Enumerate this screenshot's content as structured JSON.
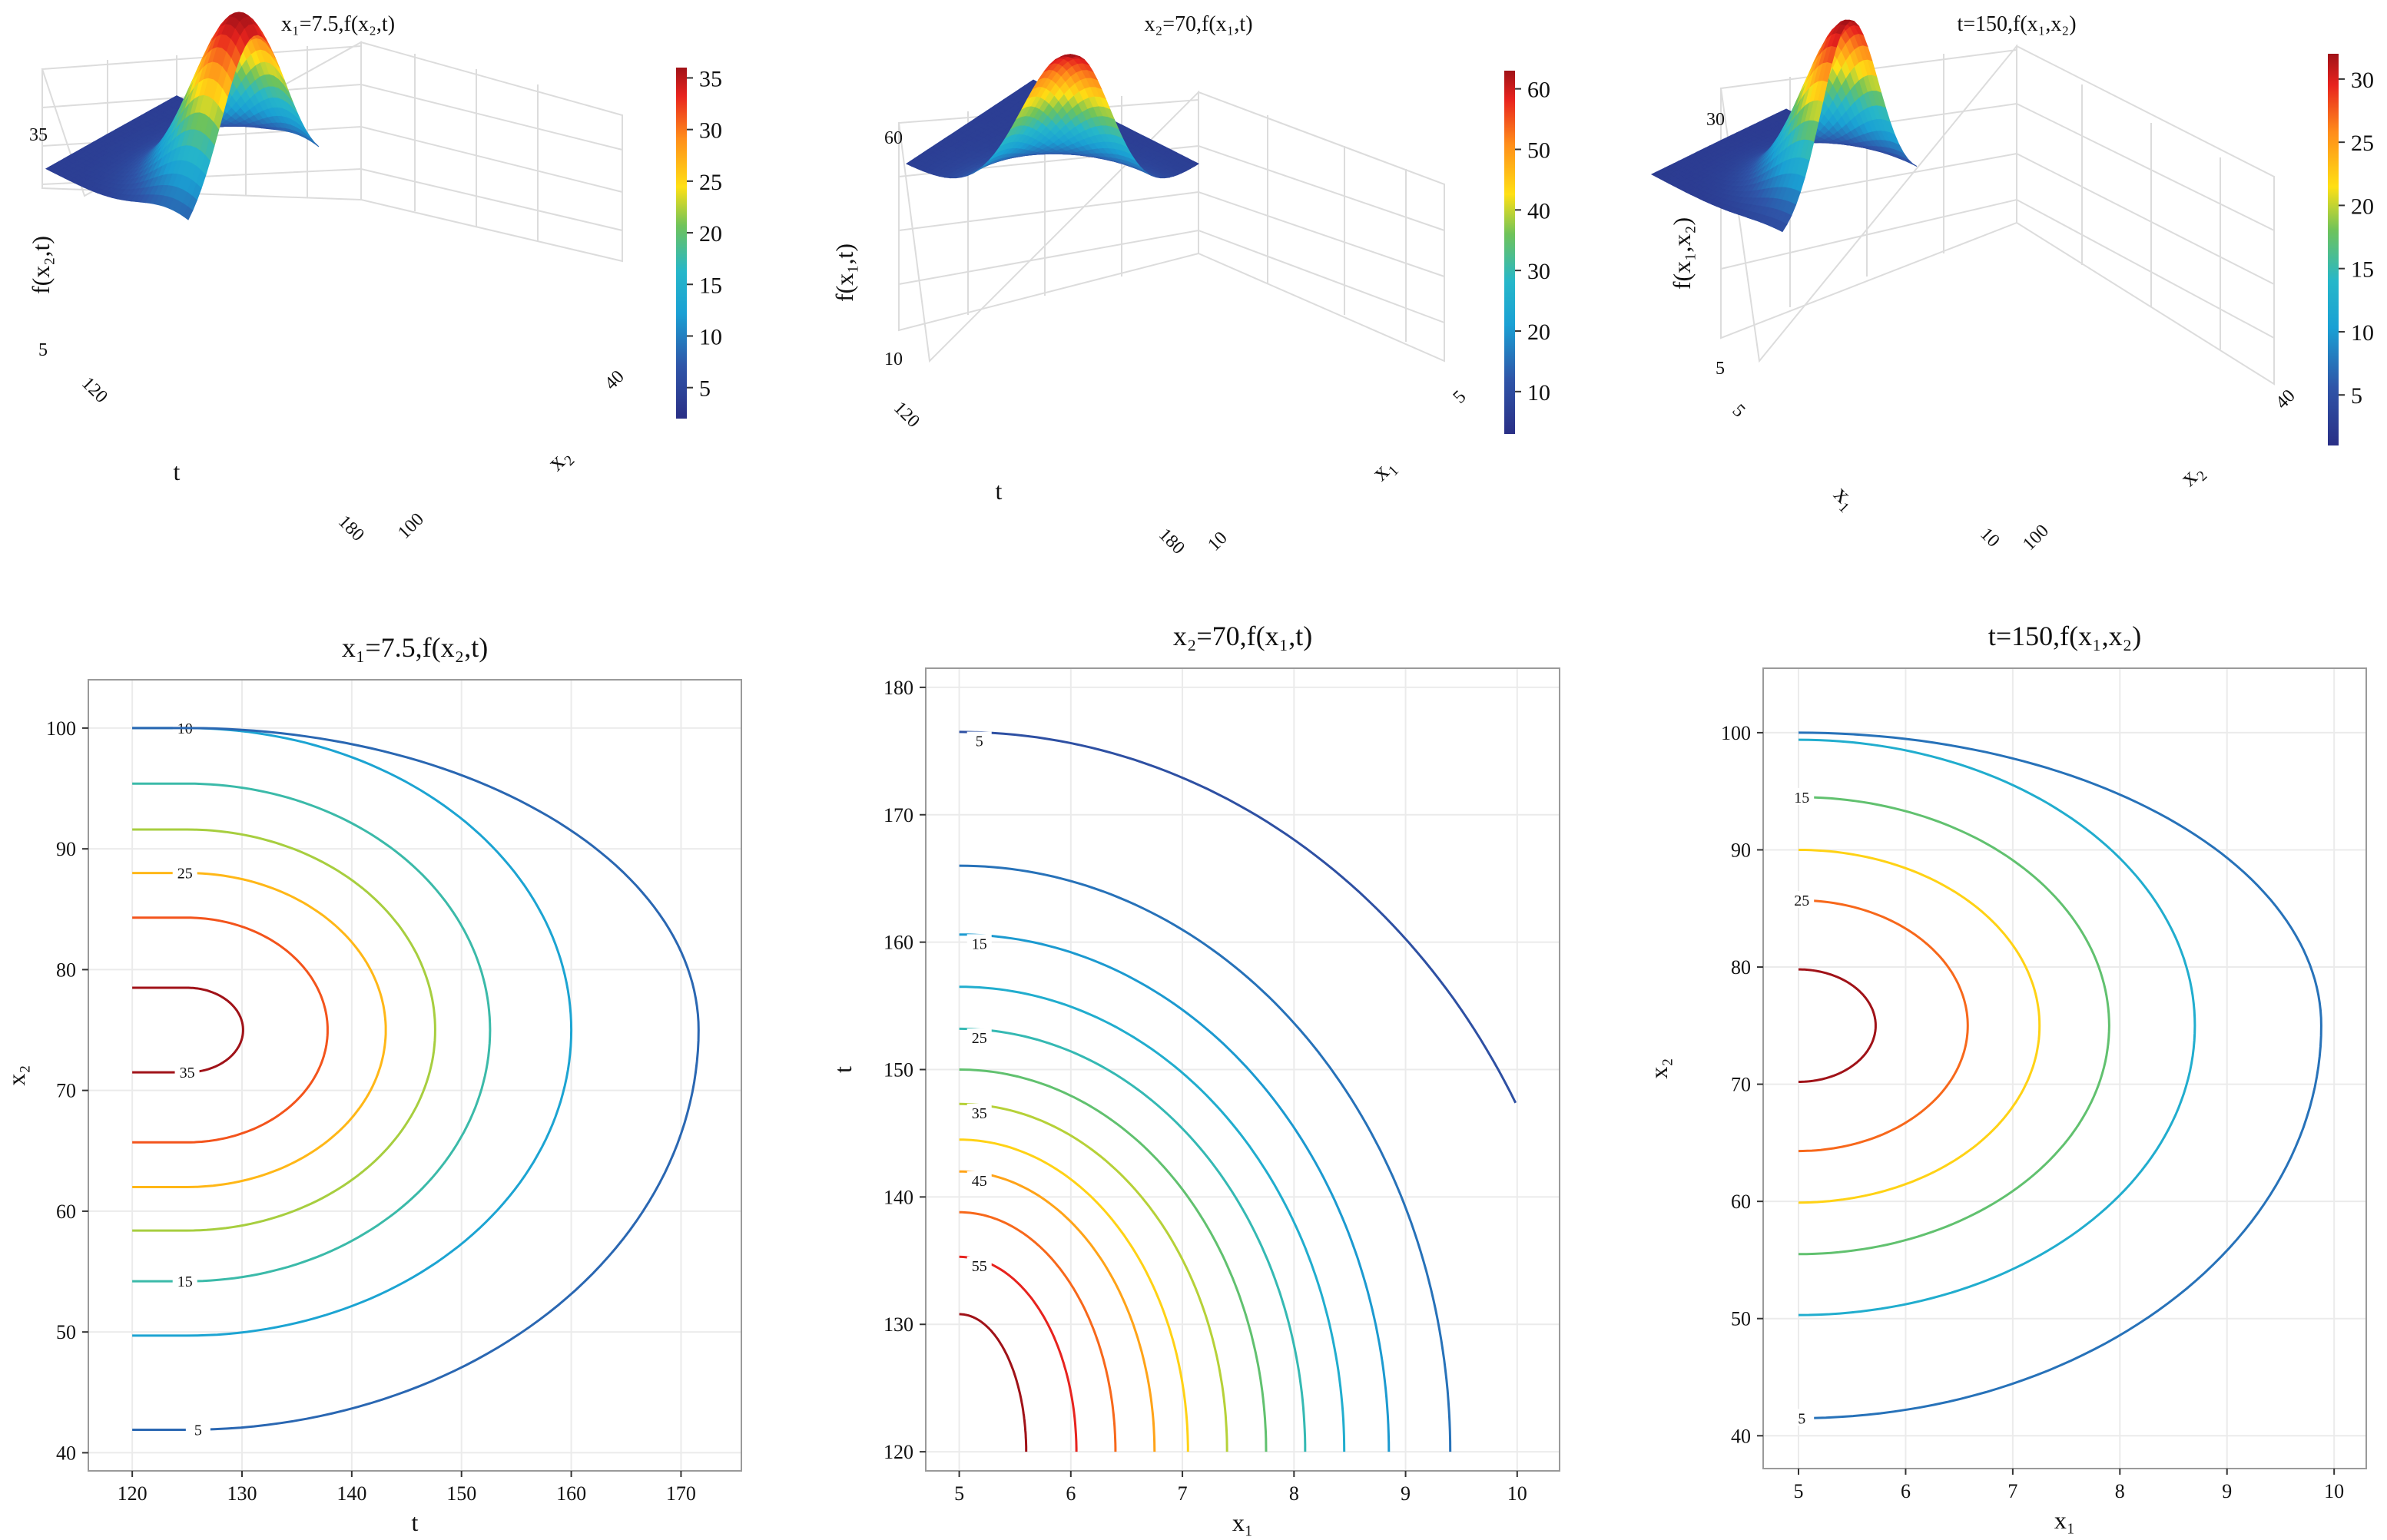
{
  "colors": {
    "palette": [
      "#2a2f86",
      "#2f4d9e",
      "#2f6fb8",
      "#1aa0d4",
      "#26b7c9",
      "#42b97a",
      "#8ccd3c",
      "#ffe014",
      "#ffb400",
      "#ff6a1e",
      "#e8231e",
      "#a01218"
    ],
    "frame": "#9a9a9a",
    "grid": "#ebebeb"
  },
  "chart_data": [
    {
      "id": "surf1",
      "type": "surface3d",
      "title": "x₁=7.5,f(x₂,t)",
      "zlabel": "f(x₂,t)",
      "xlabel": "t",
      "ylabel": "x₂",
      "ztick_labels": [
        "35",
        "5"
      ],
      "xtick_labels": [
        "120",
        "180"
      ],
      "ytick_labels": [
        "40",
        "100"
      ],
      "colorbar_ticks": [
        "35",
        "30",
        "25",
        "20",
        "15",
        "10",
        "5"
      ],
      "zrange": [
        2,
        36
      ],
      "peak": 35
    },
    {
      "id": "surf2",
      "type": "surface3d",
      "title": "x₂=70,f(x₁,t)",
      "zlabel": "f(x₁,t)",
      "xlabel": "t",
      "ylabel": "x₁",
      "ztick_labels": [
        "60",
        "10"
      ],
      "xtick_labels": [
        "120",
        "180"
      ],
      "ytick_labels": [
        "5",
        "10"
      ],
      "colorbar_ticks": [
        "60",
        "50",
        "40",
        "30",
        "20",
        "10"
      ],
      "zrange": [
        3,
        63
      ],
      "peak": 62
    },
    {
      "id": "surf3",
      "type": "surface3d",
      "title": "t=150,f(x₁,x₂)",
      "zlabel": "f(x₁,x₂)",
      "xlabel": "x₁",
      "ylabel": "x₂",
      "ztick_labels": [
        "30",
        "5"
      ],
      "xtick_labels": [
        "5",
        "10"
      ],
      "ytick_labels": [
        "40",
        "100"
      ],
      "colorbar_ticks": [
        "30",
        "25",
        "20",
        "15",
        "10",
        "5"
      ],
      "zrange": [
        1,
        32
      ],
      "peak": 31
    },
    {
      "id": "contour1",
      "type": "contour",
      "title": "x₁=7.5,f(x₂,t)",
      "xlabel": "t",
      "ylabel": "x₂",
      "x_ticks": [
        "120",
        "130",
        "140",
        "150",
        "160",
        "170"
      ],
      "y_ticks": [
        "40",
        "50",
        "60",
        "70",
        "80",
        "90",
        "100"
      ],
      "xlim": [
        116,
        175.5
      ],
      "ylim": [
        38.5,
        104
      ],
      "center": {
        "x": 120,
        "y": 75
      },
      "peak": {
        "x": 125,
        "y": 75
      },
      "levels": [
        {
          "level": 35,
          "label": "35",
          "xmax": 130.1,
          "ylo": 71.5,
          "yhi": 78.5
        },
        {
          "level": 30,
          "xmax": 137.8,
          "ylo": 65.7,
          "yhi": 84.3
        },
        {
          "level": 25,
          "label": "25",
          "xmax": 143.1,
          "ylo": 62.0,
          "yhi": 88.0
        },
        {
          "level": 20,
          "xmax": 147.6,
          "ylo": 58.4,
          "yhi": 91.6
        },
        {
          "level": 15,
          "label": "15",
          "xmax": 152.6,
          "ylo": 54.2,
          "yhi": 95.4
        },
        {
          "level": 10,
          "label": "10",
          "xmax": 160.0,
          "ylo": 49.7,
          "yhi": 100.0
        },
        {
          "level": 5,
          "label": "5",
          "xmax": 171.6,
          "ylo": 41.9,
          "yhi": 100.0
        }
      ]
    },
    {
      "id": "contour2",
      "type": "contour",
      "title": "x₂=70,f(x₁,t)",
      "xlabel": "x₁",
      "ylabel": "t",
      "x_ticks": [
        "5",
        "6",
        "7",
        "8",
        "9",
        "10"
      ],
      "y_ticks": [
        "120",
        "130",
        "140",
        "150",
        "160",
        "170",
        "180"
      ],
      "xlim": [
        4.7,
        10.38
      ],
      "ylim": [
        118.5,
        181.5
      ],
      "center": {
        "x": 5,
        "y": 120
      },
      "peak": {
        "x": 5,
        "y": 120
      },
      "levels": [
        {
          "level": 60,
          "xmax": 5.6,
          "yhi": 130.8
        },
        {
          "level": 55,
          "label": "55",
          "xmax": 6.05,
          "yhi": 135.3
        },
        {
          "level": 50,
          "xmax": 6.4,
          "yhi": 138.8
        },
        {
          "level": 45,
          "label": "45",
          "xmax": 6.75,
          "yhi": 142.0
        },
        {
          "level": 40,
          "xmax": 7.05,
          "yhi": 144.5
        },
        {
          "level": 35,
          "label": "35",
          "xmax": 7.4,
          "yhi": 147.3
        },
        {
          "level": 30,
          "xmax": 7.75,
          "yhi": 150.0
        },
        {
          "level": 25,
          "label": "25",
          "xmax": 8.1,
          "yhi": 153.2
        },
        {
          "level": 20,
          "xmax": 8.45,
          "yhi": 156.5
        },
        {
          "level": 15,
          "label": "15",
          "xmax": 8.85,
          "yhi": 160.6
        },
        {
          "level": 10,
          "xmax": 9.4,
          "yhi": 166.0
        },
        {
          "level": 5,
          "label": "5",
          "xmax": 10.7,
          "yhi": 176.5
        }
      ]
    },
    {
      "id": "contour3",
      "type": "contour",
      "title": "t=150,f(x₁,x₂)",
      "xlabel": "x₁",
      "ylabel": "x₂",
      "x_ticks": [
        "5",
        "6",
        "7",
        "8",
        "9",
        "10"
      ],
      "y_ticks": [
        "40",
        "50",
        "60",
        "70",
        "80",
        "90",
        "100"
      ],
      "xlim": [
        4.67,
        10.3
      ],
      "ylim": [
        37.2,
        105.5
      ],
      "center": {
        "x": 5,
        "y": 75
      },
      "peak": {
        "x": 5,
        "y": 75
      },
      "levels": [
        {
          "level": 30,
          "xmax": 5.72,
          "ylo": 70.2,
          "yhi": 79.8
        },
        {
          "level": 25,
          "label": "25",
          "xmax": 6.58,
          "ylo": 64.3,
          "yhi": 85.7
        },
        {
          "level": 20,
          "xmax": 7.25,
          "ylo": 59.9,
          "yhi": 90.0
        },
        {
          "level": 15,
          "label": "15",
          "xmax": 7.9,
          "ylo": 55.5,
          "yhi": 94.5
        },
        {
          "level": 10,
          "xmax": 8.7,
          "ylo": 50.3,
          "yhi": 99.4
        },
        {
          "level": 5,
          "label": "5",
          "xmax": 9.88,
          "ylo": 41.5,
          "yhi": 100.0
        }
      ]
    }
  ]
}
